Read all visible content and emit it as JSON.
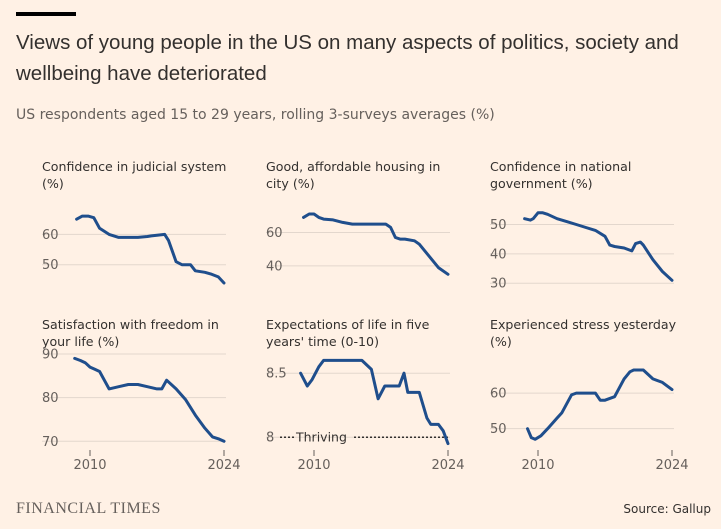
{
  "title": "Views of young people in the US on many aspects of politics, society and wellbeing have deteriorated",
  "subtitle": "US respondents aged 15 to 29 years, rolling 3-surveys averages (%)",
  "footer": {
    "logo": "FINANCIAL TIMES",
    "source": "Source: Gallup"
  },
  "chart_data": [
    {
      "type": "line",
      "title": "Confidence in judicial system (%)",
      "x_ticks": [
        "2010",
        "2024"
      ],
      "y_ticks": [
        "60",
        "50"
      ],
      "ylim": [
        43,
        70
      ],
      "x": [
        2008.6,
        2009.2,
        2009.8,
        2010.4,
        2011.0,
        2012.0,
        2013.0,
        2014.0,
        2015.0,
        2016.0,
        2016.4,
        2017.0,
        2017.8,
        2018.2,
        2019.0,
        2019.6,
        2020.5,
        2021.0,
        2022.0,
        2022.6,
        2023.4,
        2024.0
      ],
      "values": [
        65,
        66,
        66,
        65.5,
        62,
        60,
        59,
        59,
        59,
        59.3,
        59.5,
        59.7,
        60,
        58,
        51,
        50,
        50,
        48,
        47.5,
        47,
        46,
        44
      ]
    },
    {
      "type": "line",
      "title": "Good, affordable housing in city (%)",
      "x_ticks": [
        "2010",
        "2024"
      ],
      "y_ticks": [
        "60",
        "40"
      ],
      "ylim": [
        28,
        77
      ],
      "x": [
        2008.9,
        2009.5,
        2010.0,
        2010.5,
        2011.0,
        2012.0,
        2013.0,
        2014.0,
        2015.0,
        2016.0,
        2017.0,
        2017.5,
        2018.0,
        2018.5,
        2019.0,
        2019.5,
        2020.5,
        2021.0,
        2022.0,
        2023.0,
        2024.0
      ],
      "values": [
        69,
        71,
        71,
        69,
        68,
        67.5,
        66,
        65,
        65,
        65,
        65,
        65,
        63,
        57,
        56,
        56,
        55,
        53,
        46,
        39,
        35
      ]
    },
    {
      "type": "line",
      "title": "Confidence in national government (%)",
      "x_ticks": [
        "2010",
        "2024"
      ],
      "y_ticks": [
        "50",
        "40",
        "30"
      ],
      "ylim": [
        27,
        57
      ],
      "x": [
        2008.6,
        2009.2,
        2009.5,
        2010.0,
        2010.5,
        2011.0,
        2012.0,
        2013.0,
        2014.0,
        2015.0,
        2016.0,
        2017.0,
        2017.5,
        2018.0,
        2019.0,
        2019.8,
        2020.2,
        2020.7,
        2021.0,
        2022.0,
        2023.0,
        2024.0
      ],
      "values": [
        52,
        51.5,
        52,
        54,
        54,
        53.5,
        52,
        51,
        50,
        49,
        48,
        46,
        43,
        42.5,
        42,
        41,
        43.5,
        44,
        43,
        38,
        34,
        31
      ]
    },
    {
      "type": "line",
      "title": "Satisfaction with freedom in your life (%)",
      "x_ticks": [
        "2010",
        "2024"
      ],
      "y_ticks": [
        "90",
        "80",
        "70"
      ],
      "ylim": [
        68,
        90
      ],
      "x": [
        2008.4,
        2009.0,
        2009.5,
        2010.0,
        2010.5,
        2011.0,
        2012.0,
        2013.0,
        2014.0,
        2015.0,
        2016.0,
        2017.0,
        2017.5,
        2018.0,
        2019.0,
        2020.0,
        2021.0,
        2022.0,
        2022.8,
        2023.5,
        2024.0
      ],
      "values": [
        89,
        88.5,
        88,
        87,
        86.5,
        86,
        82,
        82.5,
        83,
        83,
        82.5,
        82,
        82,
        84,
        82,
        79.5,
        76,
        73,
        71,
        70.5,
        70
      ]
    },
    {
      "type": "line",
      "title": "Expectations of life in five years' time (0-10)",
      "x_ticks": [
        "2010",
        "2024"
      ],
      "y_ticks": [
        "8.5",
        "8"
      ],
      "ylim": [
        7.9,
        8.65
      ],
      "x": [
        2008.6,
        2009.3,
        2009.8,
        2010.5,
        2011.0,
        2012.0,
        2013.0,
        2014.0,
        2015.0,
        2016.0,
        2016.7,
        2017.4,
        2018.0,
        2018.9,
        2019.4,
        2019.8,
        2020.2,
        2021.0,
        2021.8,
        2022.2,
        2023.0,
        2023.5,
        2024.0
      ],
      "values": [
        8.5,
        8.4,
        8.45,
        8.55,
        8.6,
        8.6,
        8.6,
        8.6,
        8.6,
        8.53,
        8.3,
        8.4,
        8.4,
        8.4,
        8.5,
        8.35,
        8.35,
        8.35,
        8.15,
        8.1,
        8.1,
        8.05,
        7.95
      ],
      "reference": {
        "label": "Thriving",
        "value": 8.0
      }
    },
    {
      "type": "line",
      "title": "Experienced stress yesterday (%)",
      "x_ticks": [
        "2010",
        "2024"
      ],
      "y_ticks": [
        "60",
        "50"
      ],
      "ylim": [
        44,
        71
      ],
      "x": [
        2008.9,
        2009.3,
        2009.7,
        2010.3,
        2011.0,
        2012.0,
        2012.5,
        2013.0,
        2013.5,
        2014.0,
        2015.0,
        2016.0,
        2016.5,
        2017.0,
        2018.0,
        2019.0,
        2019.6,
        2020.0,
        2020.5,
        2021.0,
        2022.0,
        2023.0,
        2024.0
      ],
      "values": [
        50,
        47.5,
        47,
        48,
        50,
        53,
        54.5,
        57,
        59.5,
        60,
        60,
        60,
        58,
        58,
        59,
        64,
        66,
        66.5,
        66.5,
        66.5,
        64,
        63,
        61
      ]
    }
  ]
}
